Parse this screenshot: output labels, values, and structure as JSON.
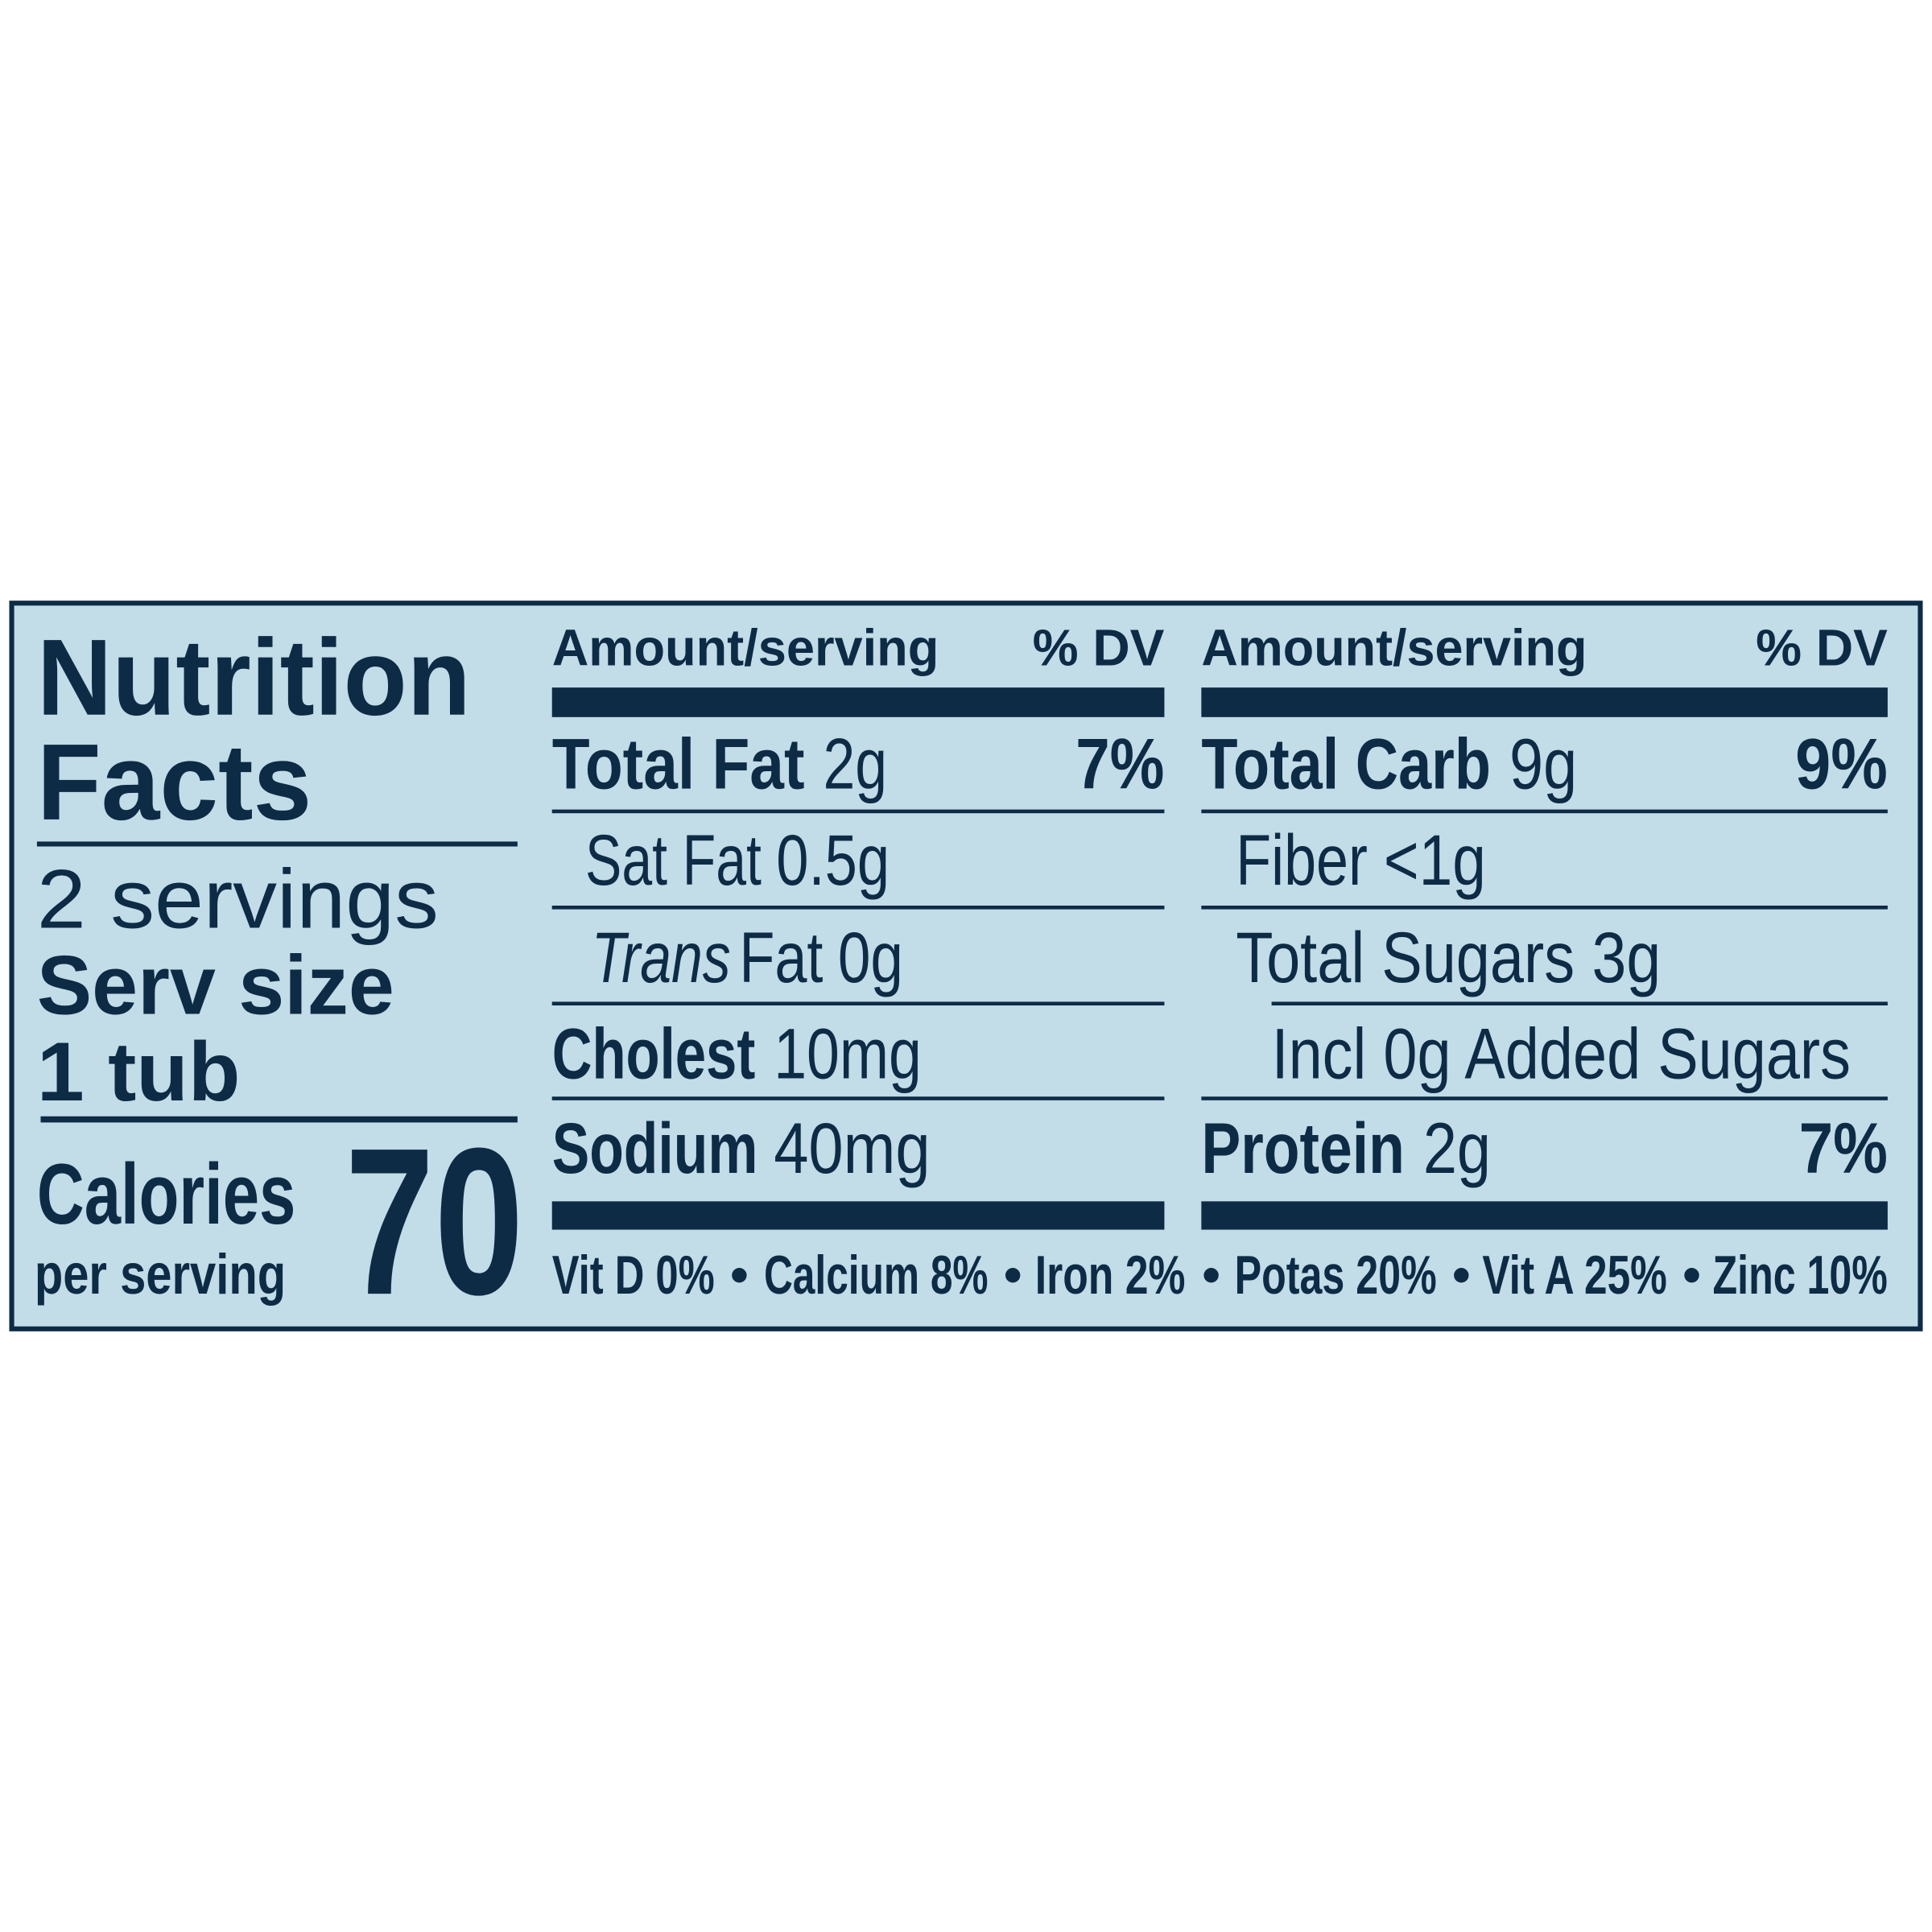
{
  "title": {
    "line1": "Nutrition",
    "line2": "Facts"
  },
  "servings": "2 servings",
  "serving_size": {
    "label": "Serv size",
    "value": "1 tub"
  },
  "calories": {
    "label": "Calories",
    "sublabel": "per serving",
    "value": 70
  },
  "columns": [
    {
      "header": {
        "amount": "Amount/serving",
        "dv": "% DV"
      },
      "rows": [
        {
          "name": "Total Fat",
          "amount": "2g",
          "dv": "7%"
        },
        {
          "name": "Sat Fat",
          "amount": "0.5g"
        },
        {
          "name_italic": "Trans",
          "name": "Fat",
          "amount": "0g"
        },
        {
          "name": "Cholest",
          "amount": "10mg"
        },
        {
          "name": "Sodium",
          "amount": "40mg"
        }
      ]
    },
    {
      "header": {
        "amount": "Amount/serving",
        "dv": "% DV"
      },
      "rows": [
        {
          "name": "Total Carb",
          "amount": "9g",
          "dv": "9%"
        },
        {
          "name": "Fiber",
          "amount": "<1g"
        },
        {
          "name": "Total Sugars",
          "amount": "3g"
        },
        {
          "text": "Incl 0g Added Sugars"
        },
        {
          "name": "Protein",
          "amount": "2g",
          "dv": "7%"
        }
      ]
    }
  ],
  "footer": [
    "Vit D 0%",
    "Calcium 8%",
    "Iron 2%",
    "Potas 20%",
    "Vit A 25%",
    "Zinc 10%"
  ]
}
